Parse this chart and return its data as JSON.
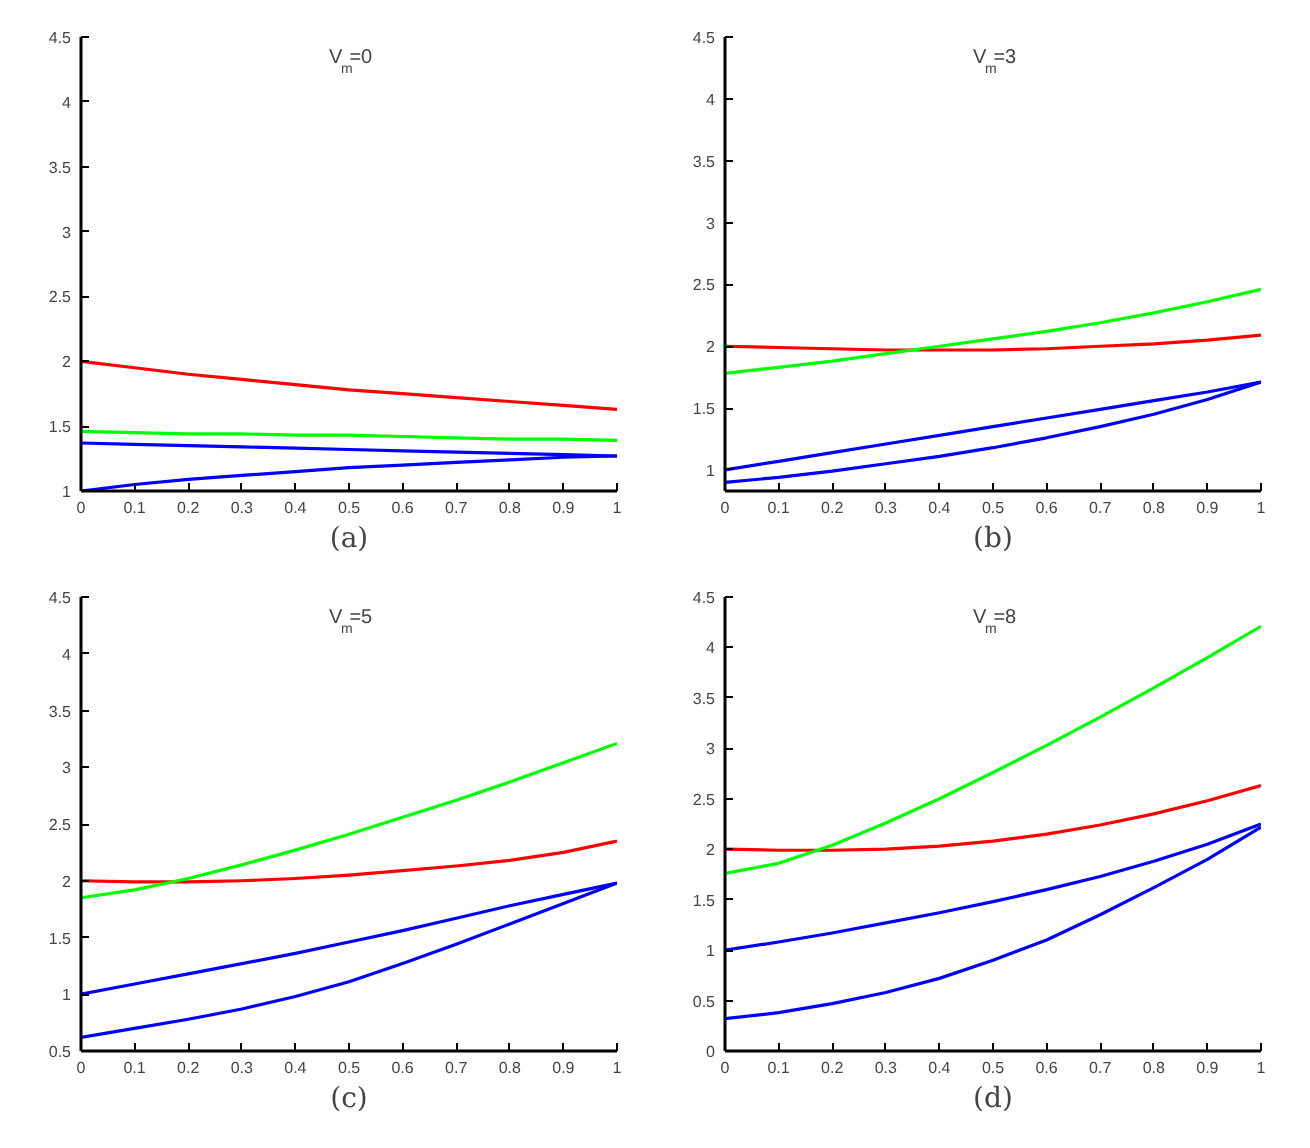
{
  "chart_data": [
    {
      "type": "line",
      "title": "V$_{m}$=0",
      "xlabel": "(a)",
      "x": [
        0,
        0.1,
        0.2,
        0.3,
        0.4,
        0.5,
        0.6,
        0.7,
        0.8,
        0.9,
        1
      ],
      "xlim": [
        0,
        1
      ],
      "xticks": [
        0,
        0.1,
        0.2,
        0.3,
        0.4,
        0.5,
        0.6,
        0.7,
        0.8,
        0.9,
        1
      ],
      "ylim": [
        1,
        4.5
      ],
      "yticks": [
        1,
        1.5,
        2,
        2.5,
        3,
        3.5,
        4,
        4.5
      ],
      "grid": false,
      "series": [
        {
          "color": "#ff0000",
          "values": [
            2,
            1.95,
            1.9,
            1.86,
            1.82,
            1.78,
            1.75,
            1.72,
            1.69,
            1.66,
            1.63
          ]
        },
        {
          "color": "#00ff00",
          "values": [
            1.46,
            1.45,
            1.44,
            1.44,
            1.43,
            1.43,
            1.42,
            1.41,
            1.4,
            1.4,
            1.39
          ]
        },
        {
          "color": "#0000ff",
          "values": [
            1.37,
            1.36,
            1.35,
            1.34,
            1.33,
            1.32,
            1.31,
            1.3,
            1.29,
            1.28,
            1.27
          ]
        },
        {
          "color": "#0000ff",
          "values": [
            1,
            1.05,
            1.09,
            1.12,
            1.15,
            1.18,
            1.2,
            1.22,
            1.24,
            1.26,
            1.27
          ]
        }
      ]
    },
    {
      "type": "line",
      "title": "V$_{m}$=3",
      "xlabel": "(b)",
      "x": [
        0,
        0.1,
        0.2,
        0.3,
        0.4,
        0.5,
        0.6,
        0.7,
        0.8,
        0.9,
        1
      ],
      "xlim": [
        0,
        1
      ],
      "xticks": [
        0,
        0.1,
        0.2,
        0.3,
        0.4,
        0.5,
        0.6,
        0.7,
        0.8,
        0.9,
        1
      ],
      "ylim": [
        0.83,
        4.5
      ],
      "yticks": [
        1,
        1.5,
        2,
        2.5,
        3,
        3.5,
        4,
        4.5
      ],
      "grid": false,
      "series": [
        {
          "color": "#ff0000",
          "values": [
            2,
            1.99,
            1.98,
            1.97,
            1.97,
            1.97,
            1.98,
            2,
            2.02,
            2.05,
            2.09
          ]
        },
        {
          "color": "#00ff00",
          "values": [
            1.78,
            1.83,
            1.88,
            1.94,
            2,
            2.06,
            2.12,
            2.19,
            2.27,
            2.36,
            2.46
          ]
        },
        {
          "color": "#0000ff",
          "values": [
            1,
            1.07,
            1.14,
            1.21,
            1.28,
            1.35,
            1.42,
            1.49,
            1.56,
            1.63,
            1.71
          ]
        },
        {
          "color": "#0000ff",
          "values": [
            0.9,
            0.94,
            0.99,
            1.05,
            1.11,
            1.18,
            1.26,
            1.35,
            1.45,
            1.57,
            1.71
          ]
        }
      ]
    },
    {
      "type": "line",
      "title": "V$_{m}$=5",
      "xlabel": "(c)",
      "x": [
        0,
        0.1,
        0.2,
        0.3,
        0.4,
        0.5,
        0.6,
        0.7,
        0.8,
        0.9,
        1
      ],
      "xlim": [
        0,
        1
      ],
      "xticks": [
        0,
        0.1,
        0.2,
        0.3,
        0.4,
        0.5,
        0.6,
        0.7,
        0.8,
        0.9,
        1
      ],
      "ylim": [
        0.5,
        4.5
      ],
      "yticks": [
        0.5,
        1,
        1.5,
        2,
        2.5,
        3,
        3.5,
        4,
        4.5
      ],
      "grid": false,
      "series": [
        {
          "color": "#ff0000",
          "values": [
            2,
            1.99,
            1.99,
            2,
            2.02,
            2.05,
            2.09,
            2.13,
            2.18,
            2.25,
            2.35
          ]
        },
        {
          "color": "#00ff00",
          "values": [
            1.85,
            1.92,
            2.02,
            2.14,
            2.27,
            2.41,
            2.56,
            2.71,
            2.87,
            3.04,
            3.21
          ]
        },
        {
          "color": "#0000ff",
          "values": [
            1,
            1.09,
            1.18,
            1.27,
            1.36,
            1.46,
            1.56,
            1.67,
            1.78,
            1.88,
            1.98
          ]
        },
        {
          "color": "#0000ff",
          "values": [
            0.62,
            0.7,
            0.78,
            0.87,
            0.98,
            1.11,
            1.27,
            1.44,
            1.62,
            1.8,
            1.98
          ]
        }
      ]
    },
    {
      "type": "line",
      "title": "V$_{m}$=8",
      "xlabel": "(d)",
      "x": [
        0,
        0.1,
        0.2,
        0.3,
        0.4,
        0.5,
        0.6,
        0.7,
        0.8,
        0.9,
        1
      ],
      "xlim": [
        0,
        1
      ],
      "xticks": [
        0,
        0.1,
        0.2,
        0.3,
        0.4,
        0.5,
        0.6,
        0.7,
        0.8,
        0.9,
        1
      ],
      "ylim": [
        0,
        4.5
      ],
      "yticks": [
        0,
        0.5,
        1,
        1.5,
        2,
        2.5,
        3,
        3.5,
        4,
        4.5
      ],
      "grid": false,
      "series": [
        {
          "color": "#ff0000",
          "values": [
            2,
            1.99,
            1.99,
            2,
            2.03,
            2.08,
            2.15,
            2.24,
            2.35,
            2.48,
            2.63
          ]
        },
        {
          "color": "#00ff00",
          "values": [
            1.76,
            1.86,
            2.04,
            2.26,
            2.5,
            2.76,
            3.03,
            3.31,
            3.6,
            3.9,
            4.21
          ]
        },
        {
          "color": "#0000ff",
          "values": [
            1,
            1.08,
            1.17,
            1.27,
            1.37,
            1.48,
            1.6,
            1.73,
            1.88,
            2.05,
            2.25
          ]
        },
        {
          "color": "#0000ff",
          "values": [
            0.32,
            0.38,
            0.47,
            0.58,
            0.72,
            0.9,
            1.1,
            1.35,
            1.62,
            1.9,
            2.22
          ]
        }
      ]
    }
  ]
}
